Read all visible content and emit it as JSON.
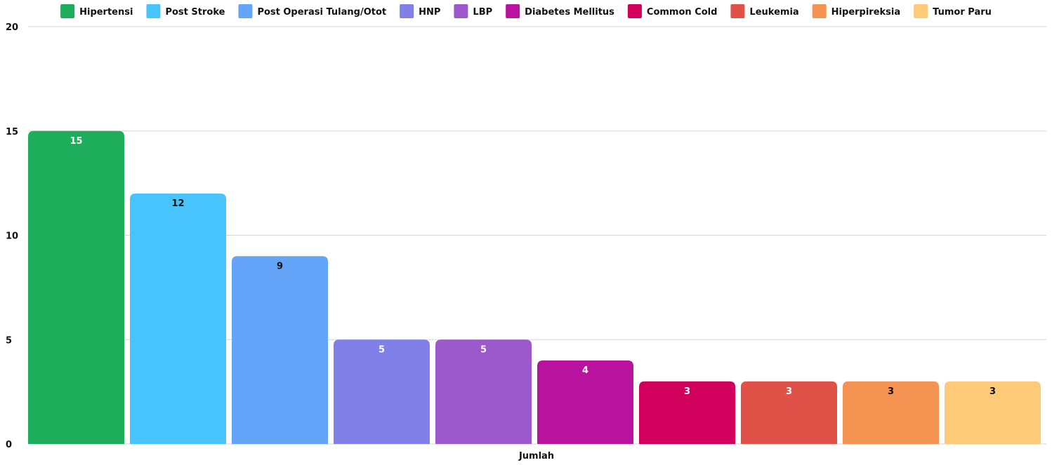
{
  "chart_data": {
    "type": "bar",
    "xlabel": "Jumlah",
    "ylim": [
      0,
      20
    ],
    "yticks": [
      0,
      5,
      10,
      15,
      20
    ],
    "grid": true,
    "legend_position": "top",
    "series": [
      {
        "name": "Hipertensi",
        "value": 15,
        "color": "#1eae5b",
        "label_color": "#ffffff"
      },
      {
        "name": "Post Stroke",
        "value": 12,
        "color": "#47c4fd",
        "label_color": "#111111"
      },
      {
        "name": "Post Operasi Tulang/Otot",
        "value": 9,
        "color": "#65a5f9",
        "label_color": "#111111"
      },
      {
        "name": "HNP",
        "value": 5,
        "color": "#8080e8",
        "label_color": "#ffffff"
      },
      {
        "name": "LBP",
        "value": 5,
        "color": "#9b59cc",
        "label_color": "#ffffff"
      },
      {
        "name": "Diabetes Mellitus",
        "value": 4,
        "color": "#b9129f",
        "label_color": "#ffffff"
      },
      {
        "name": "Common Cold",
        "value": 3,
        "color": "#d1005d",
        "label_color": "#ffffff"
      },
      {
        "name": "Leukemia",
        "value": 3,
        "color": "#e05148",
        "label_color": "#ffffff"
      },
      {
        "name": "Hiperpireksia",
        "value": 3,
        "color": "#f59352",
        "label_color": "#111111"
      },
      {
        "name": "Tumor Paru",
        "value": 3,
        "color": "#fdca78",
        "label_color": "#111111"
      }
    ]
  }
}
